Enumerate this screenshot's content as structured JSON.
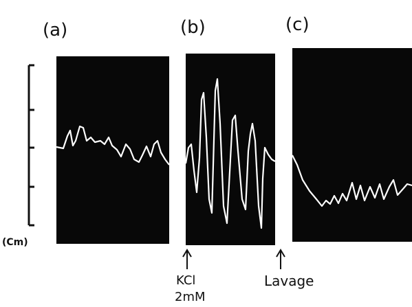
{
  "panels": [
    {
      "label": "(a)"
    },
    {
      "label": "(b)"
    },
    {
      "label": "(c)"
    }
  ],
  "scale_unit": "(Cm)",
  "annotations": [
    {
      "lines": [
        "KCl",
        "2mM"
      ]
    },
    {
      "lines": [
        "Lavage"
      ]
    }
  ]
}
